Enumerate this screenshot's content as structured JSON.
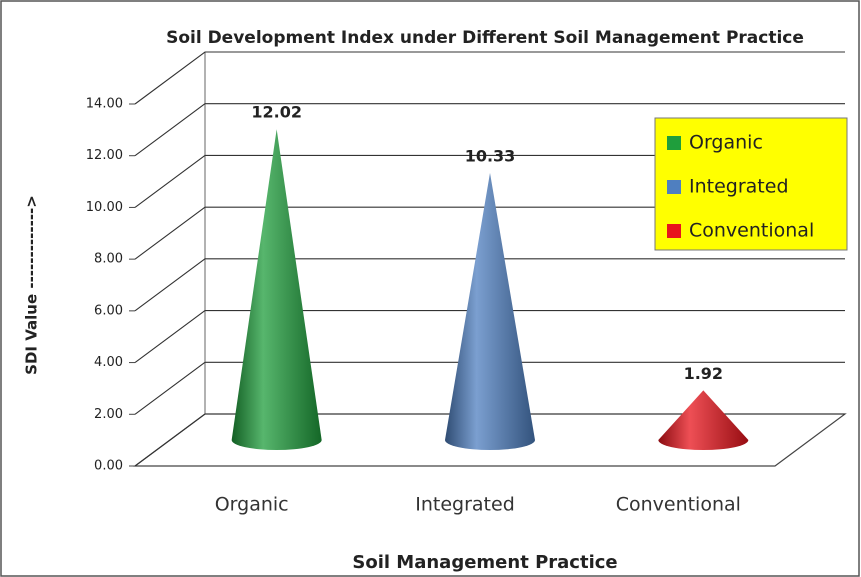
{
  "chart_data": {
    "type": "cone",
    "title": "Soil Development Index under Different Soil Management Practice",
    "x_label": "Soil Management Practice",
    "y_label": "SDI Value ------------->",
    "categories": [
      "Organic",
      "Integrated",
      "Conventional"
    ],
    "values": [
      12.02,
      10.33,
      1.92
    ],
    "colors": [
      "#1f9e3c",
      "#4f7fc0",
      "#e8141c"
    ],
    "ylim": [
      0,
      14
    ],
    "yticks": [
      {
        "value": 0,
        "label": "0.00"
      },
      {
        "value": 2,
        "label": "2.00"
      },
      {
        "value": 4,
        "label": "4.00"
      },
      {
        "value": 6,
        "label": "6.00"
      },
      {
        "value": 8,
        "label": "8.00"
      },
      {
        "value": 10,
        "label": "10.00"
      },
      {
        "value": 12,
        "label": "12.00"
      },
      {
        "value": 14,
        "label": "14.00"
      }
    ],
    "grid": true,
    "legend": "upper right"
  }
}
